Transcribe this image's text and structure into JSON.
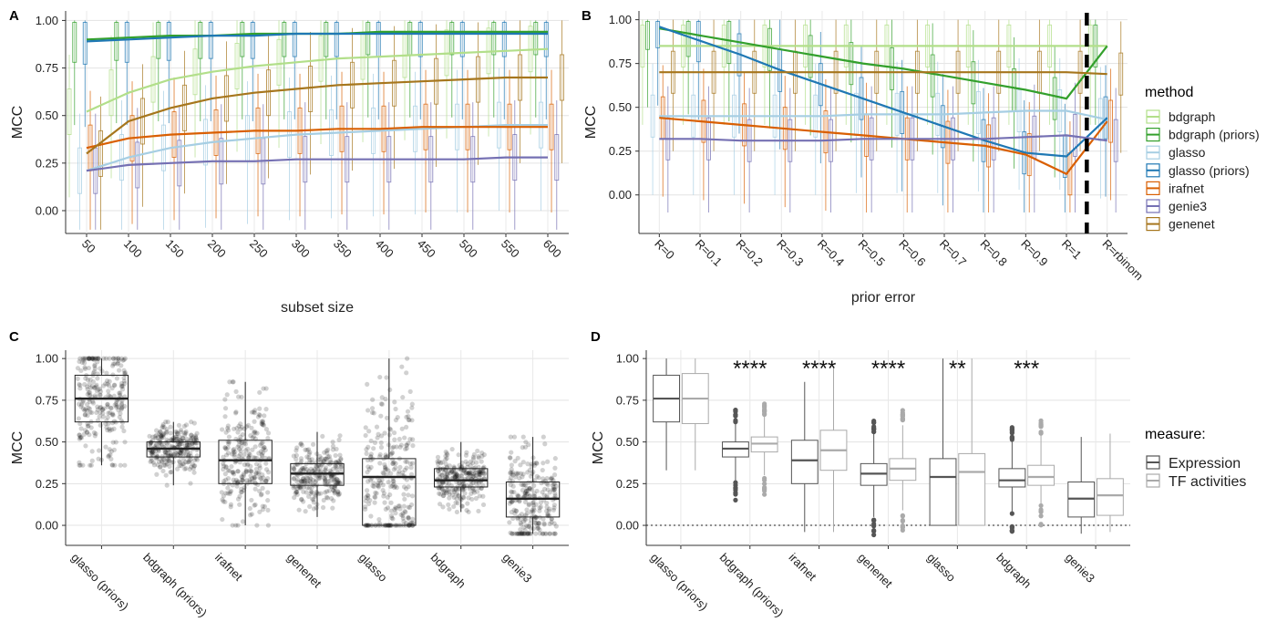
{
  "chart_data": [
    {
      "panel": "A",
      "type": "line",
      "xlabel": "subset size",
      "ylabel": "MCC",
      "categories": [
        "50",
        "100",
        "150",
        "200",
        "250",
        "300",
        "350",
        "400",
        "450",
        "500",
        "550",
        "600"
      ],
      "yticks": [
        "0.00",
        "0.25",
        "0.50",
        "0.75",
        "1.00"
      ],
      "ylim": [
        -0.12,
        1.05
      ],
      "grid": true,
      "boxplots_per_category": true,
      "series": [
        {
          "name": "bdgraph",
          "color": "#b2df8a",
          "values": [
            0.52,
            0.62,
            0.69,
            0.73,
            0.76,
            0.78,
            0.8,
            0.81,
            0.82,
            0.83,
            0.84,
            0.85
          ]
        },
        {
          "name": "bdgraph (priors)",
          "color": "#33a02c",
          "values": [
            0.9,
            0.91,
            0.92,
            0.92,
            0.93,
            0.93,
            0.93,
            0.94,
            0.94,
            0.94,
            0.94,
            0.94
          ]
        },
        {
          "name": "glasso",
          "color": "#a6cee3",
          "values": [
            0.21,
            0.28,
            0.33,
            0.36,
            0.38,
            0.4,
            0.41,
            0.42,
            0.43,
            0.44,
            0.45,
            0.45
          ]
        },
        {
          "name": "glasso (priors)",
          "color": "#1f78b4",
          "values": [
            0.89,
            0.9,
            0.91,
            0.92,
            0.92,
            0.93,
            0.93,
            0.93,
            0.93,
            0.93,
            0.93,
            0.93
          ]
        },
        {
          "name": "irafnet",
          "color": "#d95f02",
          "values": [
            0.33,
            0.38,
            0.4,
            0.41,
            0.42,
            0.42,
            0.43,
            0.43,
            0.44,
            0.44,
            0.44,
            0.44
          ]
        },
        {
          "name": "genie3",
          "color": "#7570b3",
          "values": [
            0.21,
            0.24,
            0.25,
            0.26,
            0.26,
            0.27,
            0.27,
            0.27,
            0.27,
            0.27,
            0.28,
            0.28
          ]
        },
        {
          "name": "genenet",
          "color": "#a6761d",
          "values": [
            0.3,
            0.47,
            0.54,
            0.59,
            0.62,
            0.64,
            0.66,
            0.67,
            0.68,
            0.69,
            0.7,
            0.7
          ]
        }
      ]
    },
    {
      "panel": "B",
      "type": "line",
      "xlabel": "prior error",
      "ylabel": "MCC",
      "categories": [
        "R=0",
        "R=0.1",
        "R=0.2",
        "R=0.3",
        "R=0.4",
        "R=0.5",
        "R=0.6",
        "R=0.7",
        "R=0.8",
        "R=0.9",
        "R=1",
        "R=rbinom"
      ],
      "yticks": [
        "0.00",
        "0.25",
        "0.50",
        "0.75",
        "1.00"
      ],
      "ylim": [
        -0.22,
        1.05
      ],
      "grid": true,
      "annotation": "dashed vertical line between R=1 and R=rbinom",
      "series": [
        {
          "name": "bdgraph",
          "color": "#b2df8a",
          "values": [
            0.85,
            0.85,
            0.85,
            0.85,
            0.85,
            0.85,
            0.85,
            0.85,
            0.85,
            0.85,
            0.85,
            0.85
          ]
        },
        {
          "name": "bdgraph (priors)",
          "color": "#33a02c",
          "values": [
            0.95,
            0.91,
            0.87,
            0.83,
            0.79,
            0.75,
            0.72,
            0.68,
            0.64,
            0.6,
            0.55,
            0.85
          ]
        },
        {
          "name": "glasso",
          "color": "#a6cee3",
          "values": [
            0.45,
            0.45,
            0.45,
            0.45,
            0.45,
            0.46,
            0.46,
            0.46,
            0.47,
            0.48,
            0.48,
            0.43
          ]
        },
        {
          "name": "glasso (priors)",
          "color": "#1f78b4",
          "values": [
            0.96,
            0.88,
            0.8,
            0.71,
            0.63,
            0.55,
            0.47,
            0.39,
            0.31,
            0.24,
            0.22,
            0.44
          ]
        },
        {
          "name": "irafnet",
          "color": "#d95f02",
          "values": [
            0.44,
            0.42,
            0.4,
            0.38,
            0.36,
            0.34,
            0.32,
            0.3,
            0.28,
            0.23,
            0.12,
            0.42
          ]
        },
        {
          "name": "genie3",
          "color": "#7570b3",
          "values": [
            0.32,
            0.32,
            0.31,
            0.31,
            0.31,
            0.32,
            0.32,
            0.32,
            0.32,
            0.33,
            0.34,
            0.31
          ]
        },
        {
          "name": "genenet",
          "color": "#a6761d",
          "values": [
            0.7,
            0.7,
            0.7,
            0.7,
            0.7,
            0.7,
            0.7,
            0.7,
            0.7,
            0.7,
            0.7,
            0.69
          ]
        }
      ]
    },
    {
      "panel": "C",
      "type": "boxplot",
      "ylabel": "MCC",
      "categories": [
        "glasso (priors)",
        "bdgraph (priors)",
        "irafnet",
        "genenet",
        "glasso",
        "bdgraph",
        "genie3"
      ],
      "yticks": [
        "0.00",
        "0.25",
        "0.50",
        "0.75",
        "1.00"
      ],
      "ylim": [
        -0.12,
        1.05
      ],
      "boxes": [
        {
          "min": 0.36,
          "q1": 0.62,
          "median": 0.76,
          "q3": 0.9,
          "max": 1.0
        },
        {
          "min": 0.24,
          "q1": 0.41,
          "median": 0.46,
          "q3": 0.5,
          "max": 0.62
        },
        {
          "min": 0.0,
          "q1": 0.25,
          "median": 0.39,
          "q3": 0.51,
          "max": 0.86
        },
        {
          "min": 0.05,
          "q1": 0.24,
          "median": 0.31,
          "q3": 0.37,
          "max": 0.56
        },
        {
          "min": 0.0,
          "q1": 0.0,
          "median": 0.29,
          "q3": 0.4,
          "max": 1.0
        },
        {
          "min": 0.08,
          "q1": 0.23,
          "median": 0.27,
          "q3": 0.34,
          "max": 0.5
        },
        {
          "min": -0.05,
          "q1": 0.05,
          "median": 0.16,
          "q3": 0.26,
          "max": 0.53
        }
      ]
    },
    {
      "panel": "D",
      "type": "boxplot",
      "ylabel": "MCC",
      "categories": [
        "glasso (priors)",
        "bdgraph (priors)",
        "irafnet",
        "genenet",
        "glasso",
        "bdgraph",
        "genie3"
      ],
      "yticks": [
        "0.00",
        "0.25",
        "0.50",
        "0.75",
        "1.00"
      ],
      "ylim": [
        -0.12,
        1.05
      ],
      "significance": [
        "",
        "****",
        "****",
        "****",
        "**",
        "***",
        ""
      ],
      "legend_title": "measure:",
      "series": [
        {
          "name": "Expression",
          "color": "#555555",
          "boxes": [
            {
              "min": 0.33,
              "q1": 0.62,
              "median": 0.76,
              "q3": 0.9,
              "max": 1.0
            },
            {
              "min": 0.27,
              "q1": 0.41,
              "median": 0.46,
              "q3": 0.5,
              "max": 0.62
            },
            {
              "min": -0.04,
              "q1": 0.25,
              "median": 0.39,
              "q3": 0.51,
              "max": 0.86
            },
            {
              "min": 0.05,
              "q1": 0.24,
              "median": 0.31,
              "q3": 0.37,
              "max": 0.56
            },
            {
              "min": 0.0,
              "q1": 0.0,
              "median": 0.29,
              "q3": 0.4,
              "max": 1.0
            },
            {
              "min": 0.08,
              "q1": 0.23,
              "median": 0.27,
              "q3": 0.34,
              "max": 0.5
            },
            {
              "min": -0.05,
              "q1": 0.05,
              "median": 0.16,
              "q3": 0.26,
              "max": 0.53
            }
          ]
        },
        {
          "name": "TF activities",
          "color": "#aaaaaa",
          "boxes": [
            {
              "min": 0.33,
              "q1": 0.61,
              "median": 0.76,
              "q3": 0.91,
              "max": 1.0
            },
            {
              "min": 0.3,
              "q1": 0.44,
              "median": 0.49,
              "q3": 0.53,
              "max": 0.66
            },
            {
              "min": -0.04,
              "q1": 0.33,
              "median": 0.45,
              "q3": 0.57,
              "max": 0.94
            },
            {
              "min": 0.09,
              "q1": 0.27,
              "median": 0.34,
              "q3": 0.4,
              "max": 0.6
            },
            {
              "min": 0.0,
              "q1": 0.0,
              "median": 0.32,
              "q3": 0.43,
              "max": 1.0
            },
            {
              "min": 0.12,
              "q1": 0.24,
              "median": 0.29,
              "q3": 0.36,
              "max": 0.55
            },
            {
              "min": -0.04,
              "q1": 0.06,
              "median": 0.18,
              "q3": 0.28,
              "max": 0.55
            }
          ]
        }
      ]
    }
  ],
  "legends": {
    "method_title": "method",
    "measure_title": "measure:"
  },
  "panel_labels": [
    "A",
    "B",
    "C",
    "D"
  ]
}
